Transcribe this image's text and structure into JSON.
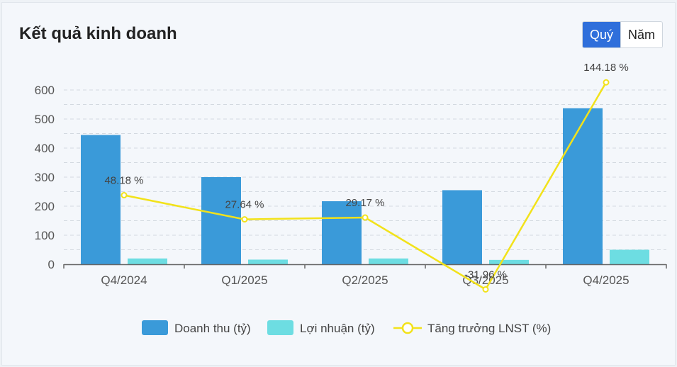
{
  "header": {
    "title": "Kết quả kinh doanh",
    "period_options": [
      "Quý",
      "Năm"
    ],
    "selected_period": "Quý"
  },
  "colors": {
    "revenue": "#3a9ad9",
    "profit": "#6ddde2",
    "growth": "#f2e21a",
    "toggle_active": "#2f6fdb"
  },
  "chart_data": {
    "type": "bar",
    "categories": [
      "Q4/2024",
      "Q1/2025",
      "Q2/2025",
      "Q3/2025",
      "Q4/2025"
    ],
    "ylim": [
      0,
      600
    ],
    "yticks": [
      0,
      100,
      200,
      300,
      400,
      500,
      600
    ],
    "series": [
      {
        "name": "Doanh thu (tỷ)",
        "type": "bar",
        "values": [
          445,
          300,
          217,
          255,
          537
        ]
      },
      {
        "name": "Lợi nhuận (tỷ)",
        "type": "bar",
        "values": [
          20,
          16,
          20,
          15,
          50
        ]
      },
      {
        "name": "Tăng trưởng LNST (%)",
        "type": "line",
        "values": [
          48.18,
          27.64,
          29.17,
          -31.96,
          144.18
        ],
        "labels": [
          "48.18 %",
          "27.64 %",
          "29.17 %",
          "-31.96 %",
          "144.18 %"
        ]
      }
    ],
    "legend_position": "bottom",
    "grid": true
  }
}
